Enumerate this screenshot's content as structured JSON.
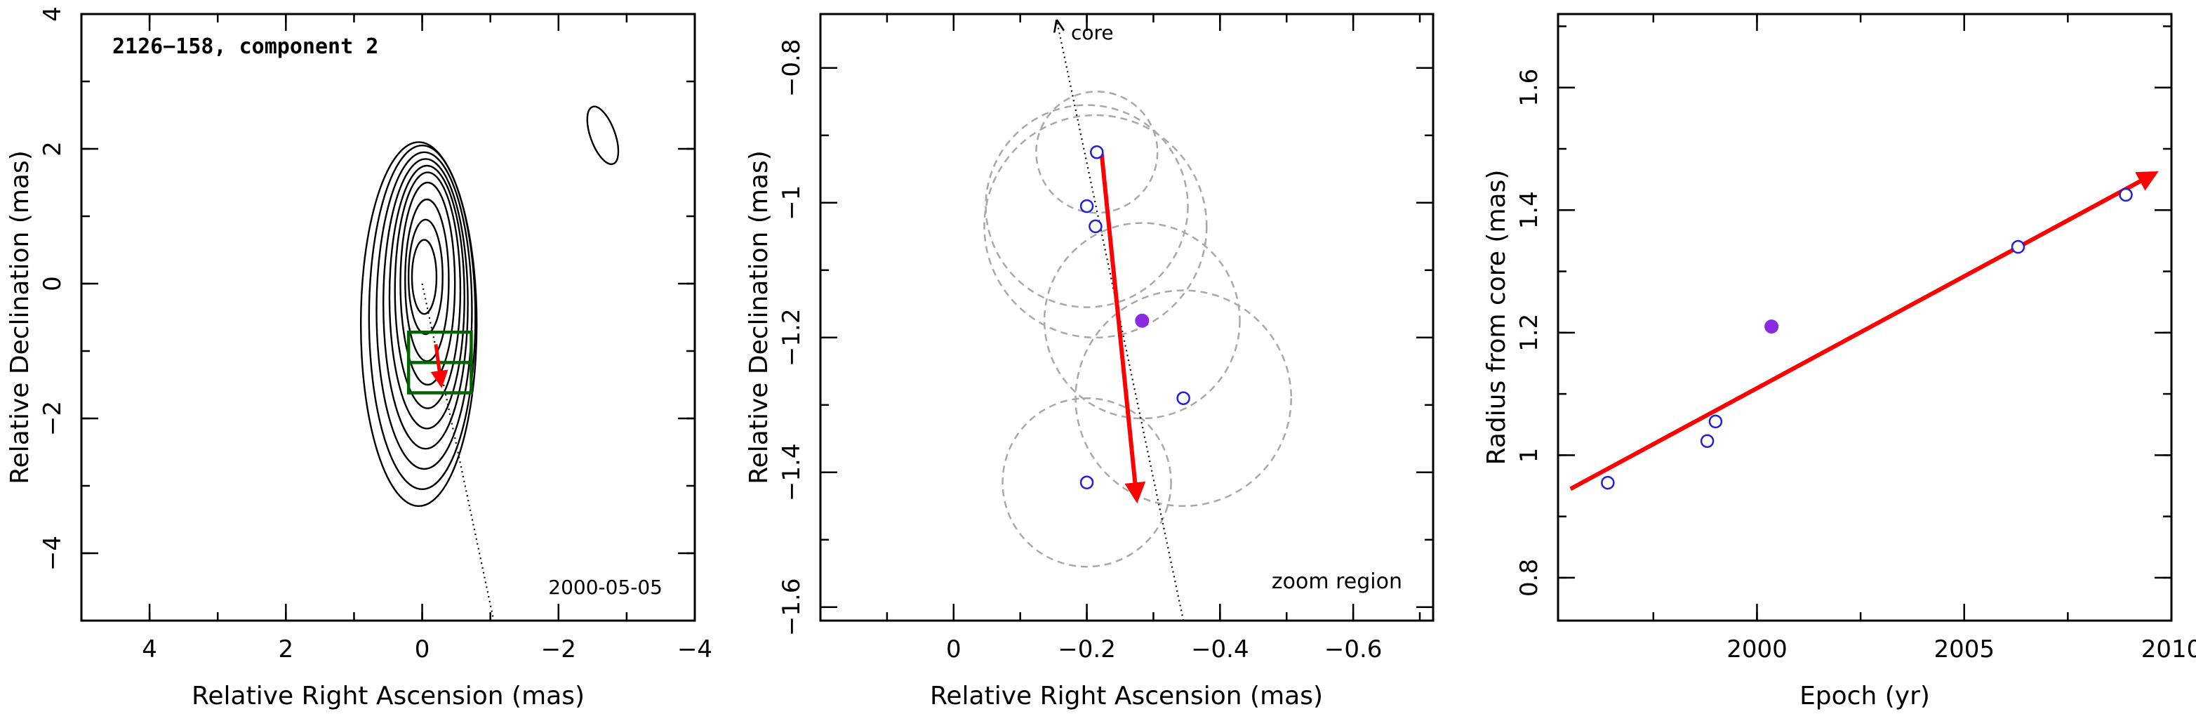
{
  "chart_data": [
    {
      "type": "contour",
      "title": "2126−158, component 2",
      "annotation": "2000-05-05",
      "xlabel": "Relative Right Ascension (mas)",
      "ylabel": "Relative Declination (mas)",
      "xlim": [
        5,
        -4
      ],
      "ylim": [
        -5,
        4
      ],
      "xticks": [
        4,
        2,
        0,
        -2,
        -4
      ],
      "xticklabels": [
        "4",
        "2",
        "0",
        "−2",
        "−4"
      ],
      "yticks": [
        4,
        2,
        0,
        -2,
        -4
      ],
      "yticklabels": [
        "4",
        "2",
        "0",
        "−2",
        "−4"
      ],
      "contours": [
        {
          "cx": 0.05,
          "cy": -0.6,
          "rx": 0.85,
          "ry": 2.7
        },
        {
          "cx": 0.0,
          "cy": -0.5,
          "rx": 0.78,
          "ry": 2.55
        },
        {
          "cx": -0.03,
          "cy": -0.4,
          "rx": 0.7,
          "ry": 2.35
        },
        {
          "cx": -0.05,
          "cy": -0.3,
          "rx": 0.62,
          "ry": 2.15
        },
        {
          "cx": -0.07,
          "cy": -0.2,
          "rx": 0.55,
          "ry": 1.95
        },
        {
          "cx": -0.08,
          "cy": -0.1,
          "rx": 0.48,
          "ry": 1.75
        },
        {
          "cx": -0.08,
          "cy": 0.0,
          "rx": 0.4,
          "ry": 1.5
        },
        {
          "cx": -0.07,
          "cy": 0.05,
          "rx": 0.32,
          "ry": 1.2
        },
        {
          "cx": -0.05,
          "cy": 0.1,
          "rx": 0.25,
          "ry": 0.85
        },
        {
          "cx": -0.03,
          "cy": 0.1,
          "rx": 0.18,
          "ry": 0.55
        }
      ],
      "island_contour": {
        "cx": -2.65,
        "cy": 2.2,
        "rx": 0.18,
        "ry": 0.45,
        "tilt_deg": -20
      },
      "core_direction_line": {
        "from": [
          0,
          0
        ],
        "to": [
          -1.05,
          -5
        ]
      },
      "zoom_box": {
        "x": [
          0.2,
          -0.72
        ],
        "y": [
          -0.72,
          -1.62
        ]
      },
      "zoom_box_inner_y": -1.17,
      "motion_vector": {
        "from": [
          -0.2,
          -0.9
        ],
        "to": [
          -0.28,
          -1.5
        ]
      },
      "colors": {
        "contour": "#000000",
        "box": "#006400",
        "vector": "#ff0000"
      }
    },
    {
      "type": "scatter",
      "annotation": "zoom region",
      "core_label": "core",
      "xlabel": "Relative Right Ascension (mas)",
      "ylabel": "Relative Declination (mas)",
      "xlim": [
        0.2,
        -0.72
      ],
      "ylim": [
        -1.62,
        -0.72
      ],
      "xticks": [
        0,
        -0.2,
        -0.4,
        -0.6
      ],
      "xticklabels": [
        "0",
        "−0.2",
        "−0.4",
        "−0.6"
      ],
      "yticks": [
        -0.8,
        -1,
        -1.2,
        -1.4,
        -1.6
      ],
      "yticklabels": [
        "−0.8",
        "−1",
        "−1.2",
        "−1.4",
        "−1.6"
      ],
      "points": [
        {
          "x": -0.215,
          "y": -0.925,
          "r": 0.09,
          "filled": false
        },
        {
          "x": -0.2,
          "y": -1.005,
          "r": 0.15,
          "filled": false
        },
        {
          "x": -0.213,
          "y": -1.035,
          "r": 0.165,
          "filled": false
        },
        {
          "x": -0.283,
          "y": -1.175,
          "r": 0.145,
          "filled": true
        },
        {
          "x": -0.345,
          "y": -1.29,
          "r": 0.16,
          "filled": false
        },
        {
          "x": -0.2,
          "y": -1.415,
          "r": 0.125,
          "filled": false
        }
      ],
      "core_direction_line": {
        "from": [
          -0.345,
          -1.62
        ],
        "to": [
          -0.155,
          -0.73
        ]
      },
      "motion_vector": {
        "from": [
          -0.222,
          -0.925
        ],
        "to": [
          -0.275,
          -1.44
        ]
      },
      "colors": {
        "open_point": "#1f1fdd",
        "filled_point": "#8a2be2",
        "circle": "#a8a8a8",
        "vector": "#ff0000"
      }
    },
    {
      "type": "scatter",
      "xlabel": "Epoch (yr)",
      "ylabel": "Radius from core (mas)",
      "xlim": [
        1995.2,
        2010
      ],
      "ylim": [
        0.73,
        1.72
      ],
      "xticks": [
        2000,
        2005,
        2010
      ],
      "xticklabels": [
        "2000",
        "2005",
        "2010"
      ],
      "yticks": [
        0.8,
        1,
        1.2,
        1.4,
        1.6
      ],
      "yticklabels": [
        "0.8",
        "1",
        "1.2",
        "1.4",
        "1.6"
      ],
      "points": [
        {
          "x": 1996.4,
          "y": 0.955,
          "filled": false
        },
        {
          "x": 1998.8,
          "y": 1.023,
          "filled": false
        },
        {
          "x": 1999.0,
          "y": 1.055,
          "filled": false
        },
        {
          "x": 2000.35,
          "y": 1.21,
          "filled": true
        },
        {
          "x": 2006.3,
          "y": 1.34,
          "filled": false
        },
        {
          "x": 2008.9,
          "y": 1.425,
          "filled": false
        }
      ],
      "fit_line": {
        "from": [
          1995.5,
          0.945
        ],
        "to": [
          2009.6,
          1.46
        ]
      },
      "colors": {
        "open_point": "#1f1fdd",
        "filled_point": "#8a2be2",
        "fit": "#ff0000"
      }
    }
  ]
}
